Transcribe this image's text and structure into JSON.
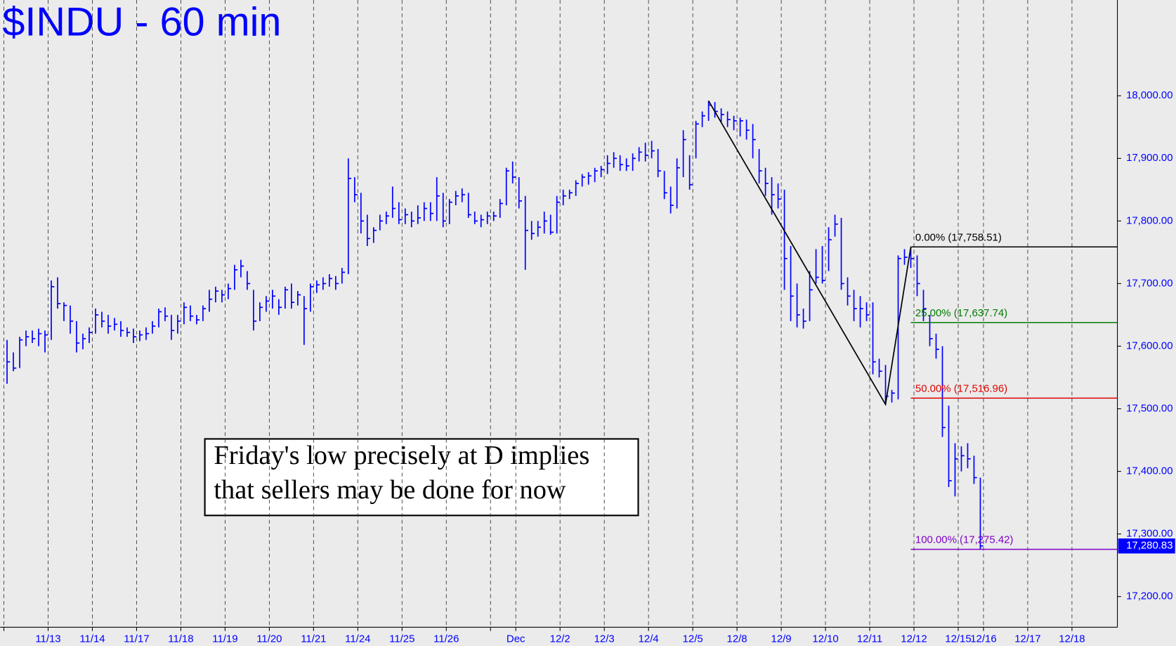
{
  "chart_data": {
    "type": "ohlc",
    "title": "$INDU - 60 min",
    "categories": [
      null,
      "11/13",
      "11/14",
      "11/17",
      "11/18",
      "11/19",
      "11/20",
      "11/21",
      "11/24",
      "11/25",
      "11/26",
      null,
      "Dec",
      "12/2",
      "12/3",
      "12/4",
      "12/5",
      "12/8",
      "12/9",
      "12/10",
      "12/11",
      "12/12",
      "12/15",
      "12/16",
      "12/17",
      "12/18"
    ],
    "bars": [
      [
        [
          17610,
          17540,
          17575
        ],
        [
          17590,
          17560,
          17565
        ],
        [
          17615,
          17565,
          17610
        ],
        [
          17625,
          17600,
          17615
        ],
        [
          17625,
          17605,
          17612
        ],
        [
          17628,
          17600,
          17620
        ],
        [
          17625,
          17590,
          17618
        ]
      ],
      [
        [
          17705,
          17610,
          17695
        ],
        [
          17710,
          17660,
          17668
        ],
        [
          17670,
          17640,
          17665
        ],
        [
          17665,
          17620,
          17640
        ],
        [
          17640,
          17590,
          17605
        ],
        [
          17620,
          17595,
          17612
        ],
        [
          17630,
          17605,
          17622
        ]
      ],
      [
        [
          17660,
          17620,
          17650
        ],
        [
          17655,
          17630,
          17640
        ],
        [
          17650,
          17620,
          17632
        ],
        [
          17645,
          17625,
          17635
        ],
        [
          17640,
          17615,
          17625
        ],
        [
          17630,
          17615,
          17622
        ],
        [
          17628,
          17605,
          17615
        ]
      ],
      [
        [
          17625,
          17608,
          17618
        ],
        [
          17630,
          17610,
          17620
        ],
        [
          17640,
          17620,
          17632
        ],
        [
          17660,
          17630,
          17655
        ],
        [
          17662,
          17640,
          17648
        ],
        [
          17650,
          17610,
          17625
        ],
        [
          17650,
          17620,
          17640
        ]
      ],
      [
        [
          17670,
          17635,
          17662
        ],
        [
          17665,
          17640,
          17648
        ],
        [
          17650,
          17635,
          17642
        ],
        [
          17665,
          17640,
          17660
        ],
        [
          17690,
          17655,
          17675
        ],
        [
          17695,
          17670,
          17688
        ],
        [
          17690,
          17670,
          17682
        ]
      ],
      [
        [
          17700,
          17675,
          17692
        ],
        [
          17730,
          17690,
          17722
        ],
        [
          17738,
          17710,
          17728
        ],
        [
          17720,
          17690,
          17700
        ],
        [
          17690,
          17625,
          17640
        ],
        [
          17670,
          17640,
          17662
        ],
        [
          17680,
          17655,
          17672
        ]
      ],
      [
        [
          17690,
          17660,
          17680
        ],
        [
          17675,
          17650,
          17662
        ],
        [
          17695,
          17660,
          17690
        ],
        [
          17700,
          17660,
          17670
        ],
        [
          17688,
          17665,
          17682
        ],
        [
          17680,
          17602,
          17660
        ],
        [
          17700,
          17655,
          17695
        ]
      ],
      [
        [
          17705,
          17685,
          17698
        ],
        [
          17710,
          17690,
          17700
        ],
        [
          17715,
          17695,
          17708
        ],
        [
          17712,
          17690,
          17700
        ],
        [
          17725,
          17700,
          17718
        ],
        [
          17900,
          17715,
          17868
        ],
        [
          17870,
          17830,
          17842
        ]
      ],
      [
        [
          17845,
          17780,
          17800
        ],
        [
          17810,
          17760,
          17772
        ],
        [
          17790,
          17765,
          17785
        ],
        [
          17810,
          17785,
          17800
        ],
        [
          17815,
          17795,
          17808
        ],
        [
          17855,
          17805,
          17820
        ],
        [
          17830,
          17795,
          17802
        ]
      ],
      [
        [
          17820,
          17795,
          17810
        ],
        [
          17815,
          17790,
          17800
        ],
        [
          17825,
          17795,
          17805
        ],
        [
          17830,
          17800,
          17820
        ],
        [
          17830,
          17800,
          17812
        ],
        [
          17870,
          17800,
          17840
        ],
        [
          17845,
          17790,
          17800
        ]
      ],
      [
        [
          17835,
          17795,
          17830
        ],
        [
          17848,
          17825,
          17840
        ],
        [
          17852,
          17830,
          17842
        ],
        [
          17845,
          17805,
          17810
        ],
        [
          17815,
          17795,
          17800
        ],
        [
          17810,
          17790,
          17802
        ],
        [
          17815,
          17795,
          17808
        ]
      ],
      [
        [
          17815,
          17800,
          17808
        ],
        [
          17835,
          17805,
          17828
        ],
        [
          17885,
          17825,
          17880
        ],
        [
          17895,
          17860,
          17870
        ]
      ],
      [
        [
          17870,
          17820,
          17832
        ],
        [
          17840,
          17722,
          17785
        ],
        [
          17800,
          17770,
          17780
        ],
        [
          17800,
          17775,
          17790
        ],
        [
          17815,
          17780,
          17800
        ],
        [
          17810,
          17778,
          17782
        ],
        [
          17840,
          17780,
          17830
        ]
      ],
      [
        [
          17850,
          17825,
          17840
        ],
        [
          17850,
          17835,
          17845
        ],
        [
          17865,
          17840,
          17860
        ],
        [
          17875,
          17855,
          17870
        ],
        [
          17878,
          17858,
          17872
        ],
        [
          17885,
          17862,
          17880
        ],
        [
          17888,
          17870,
          17882
        ]
      ],
      [
        [
          17905,
          17875,
          17892
        ],
        [
          17910,
          17885,
          17900
        ],
        [
          17905,
          17880,
          17890
        ],
        [
          17900,
          17880,
          17888
        ],
        [
          17908,
          17880,
          17900
        ],
        [
          17918,
          17895,
          17910
        ],
        [
          17925,
          17895,
          17905
        ]
      ],
      [
        [
          17928,
          17900,
          17912
        ],
        [
          17915,
          17870,
          17880
        ],
        [
          17880,
          17835,
          17845
        ],
        [
          17855,
          17812,
          17825
        ],
        [
          17900,
          17820,
          17885
        ],
        [
          17945,
          17870,
          17930
        ],
        [
          17905,
          17850,
          17858
        ]
      ],
      [
        [
          17960,
          17900,
          17955
        ],
        [
          17975,
          17950,
          17968
        ],
        [
          17992,
          17960,
          17985
        ],
        [
          17990,
          17965,
          17975
        ],
        [
          17980,
          17958,
          17970
        ],
        [
          17975,
          17950,
          17962
        ],
        [
          17968,
          17945,
          17960
        ]
      ],
      [
        [
          17965,
          17935,
          17960
        ],
        [
          17962,
          17930,
          17945
        ],
        [
          17955,
          17900,
          17930
        ],
        [
          17915,
          17860,
          17880
        ],
        [
          17885,
          17840,
          17860
        ],
        [
          17870,
          17810,
          17842
        ],
        [
          17860,
          17820,
          17835
        ]
      ],
      [
        [
          17850,
          17690,
          17740
        ],
        [
          17760,
          17640,
          17680
        ],
        [
          17700,
          17630,
          17650
        ],
        [
          17660,
          17628,
          17640
        ],
        [
          17720,
          17640,
          17690
        ],
        [
          17755,
          17700,
          17710
        ],
        [
          17760,
          17700,
          17705
        ]
      ],
      [
        [
          17790,
          17720,
          17770
        ],
        [
          17810,
          17775,
          17795
        ],
        [
          17805,
          17690,
          17700
        ],
        [
          17710,
          17665,
          17680
        ],
        [
          17690,
          17640,
          17660
        ],
        [
          17680,
          17630,
          17660
        ],
        [
          17670,
          17640,
          17650
        ]
      ],
      [
        [
          17670,
          17555,
          17575
        ],
        [
          17580,
          17550,
          17560
        ],
        [
          17570,
          17507,
          17520
        ],
        [
          17530,
          17510,
          17525
        ],
        [
          17745,
          17515,
          17740
        ],
        [
          17755,
          17730,
          17742
        ],
        [
          17758,
          17725,
          17740
        ]
      ],
      [
        [
          17745,
          17680,
          17700
        ],
        [
          17690,
          17640,
          17660
        ],
        [
          17650,
          17600,
          17612
        ],
        [
          17620,
          17580,
          17595
        ],
        [
          17600,
          17455,
          17470
        ],
        [
          17505,
          17375,
          17385
        ],
        [
          17445,
          17360,
          17420
        ]
      ],
      [
        [
          17440,
          17400,
          17425
        ],
        [
          17445,
          17405,
          17420
        ],
        [
          17425,
          17380,
          17390
        ],
        [
          17390,
          17275.42,
          17280.83
        ]
      ],
      [],
      [],
      []
    ],
    "color": "#0000ff",
    "ylim": [
      17151,
      18153
    ],
    "yticks": [
      {
        "value": 17200,
        "label": "17,200.00"
      },
      {
        "value": 17300,
        "label": "17,300.00"
      },
      {
        "value": 17400,
        "label": "17,400.00"
      },
      {
        "value": 17500,
        "label": "17,500.00"
      },
      {
        "value": 17600,
        "label": "17,600.00"
      },
      {
        "value": 17700,
        "label": "17,700.00"
      },
      {
        "value": 17800,
        "label": "17,800.00"
      },
      {
        "value": 17900,
        "label": "17,900.00"
      },
      {
        "value": 18000,
        "label": "18,000.00"
      }
    ],
    "fib": [
      {
        "label": "0.00% (17,758.51)",
        "value": 17758.51,
        "color": "#000000"
      },
      {
        "label": "25.00% (17,637.74)",
        "value": 17637.74,
        "color": "#007a00"
      },
      {
        "label": "50.00% (17,516.96)",
        "value": 17516.96,
        "color": "#e00000"
      },
      {
        "label": "100.00% (17,275.42)",
        "value": 17275.42,
        "color": "#8000c8"
      }
    ],
    "last": {
      "value": 17280.83,
      "label": "17,280.83"
    },
    "annotation": [
      "Friday's low precisely at D implies",
      "that sellers may be done for now"
    ]
  }
}
